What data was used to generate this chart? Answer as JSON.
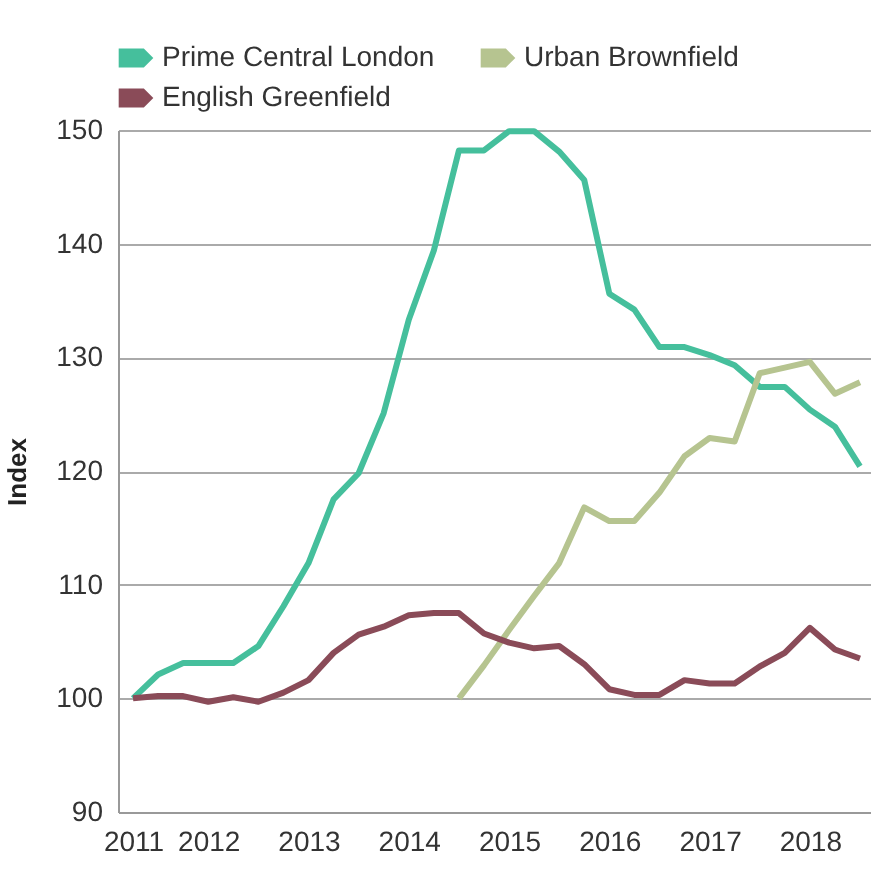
{
  "chart_data": {
    "type": "line",
    "ylabel": "Index",
    "x": [
      2011.25,
      2011.5,
      2011.75,
      2012,
      2012.25,
      2012.5,
      2012.75,
      2013,
      2013.25,
      2013.5,
      2013.75,
      2014,
      2014.25,
      2014.5,
      2014.75,
      2015,
      2015.25,
      2015.5,
      2015.75,
      2016,
      2016.25,
      2016.5,
      2016.75,
      2017,
      2017.25,
      2017.5,
      2017.75,
      2018,
      2018.25,
      2018.5
    ],
    "series": [
      {
        "name": "Prime Central London",
        "color": "#45bf9c",
        "values": [
          100,
          102.1,
          103.1,
          103.1,
          103.1,
          104.6,
          108.1,
          111.9,
          117.5,
          119.8,
          125.1,
          133.3,
          139.4,
          148.2,
          148.2,
          149.9,
          149.9,
          148.1,
          145.6,
          135.6,
          134.2,
          130.9,
          130.9,
          130.2,
          129.3,
          127.4,
          127.4,
          125.4,
          123.9,
          120.4
        ]
      },
      {
        "name": "Urban Brownfield",
        "color": "#b6c490",
        "values": [
          null,
          null,
          null,
          null,
          null,
          null,
          null,
          null,
          null,
          null,
          null,
          null,
          null,
          100,
          102.9,
          106,
          109,
          111.9,
          116.8,
          115.6,
          115.6,
          118.1,
          121.3,
          122.9,
          122.6,
          128.6,
          129.1,
          129.6,
          126.8,
          127.8
        ]
      },
      {
        "name": "English Greenfield",
        "color": "#8a4b58",
        "values": [
          100,
          100.2,
          100.2,
          99.7,
          100.1,
          99.7,
          100.5,
          101.6,
          104,
          105.6,
          106.3,
          107.3,
          107.5,
          107.5,
          105.7,
          104.9,
          104.4,
          104.6,
          103,
          100.8,
          100.3,
          100.3,
          101.6,
          101.3,
          101.3,
          102.8,
          104,
          106.2,
          104.3,
          103.5
        ]
      }
    ],
    "xlim": [
      2011.1,
      2018.6
    ],
    "xticks": [
      {
        "value": 2011.25,
        "label": "2011"
      },
      2012,
      2013,
      2014,
      2015,
      2016,
      2017,
      2018
    ],
    "ylim": [
      90,
      150
    ],
    "yticks": [
      90,
      100,
      110,
      120,
      130,
      140,
      150
    ],
    "grid": "y",
    "legend": "top"
  }
}
